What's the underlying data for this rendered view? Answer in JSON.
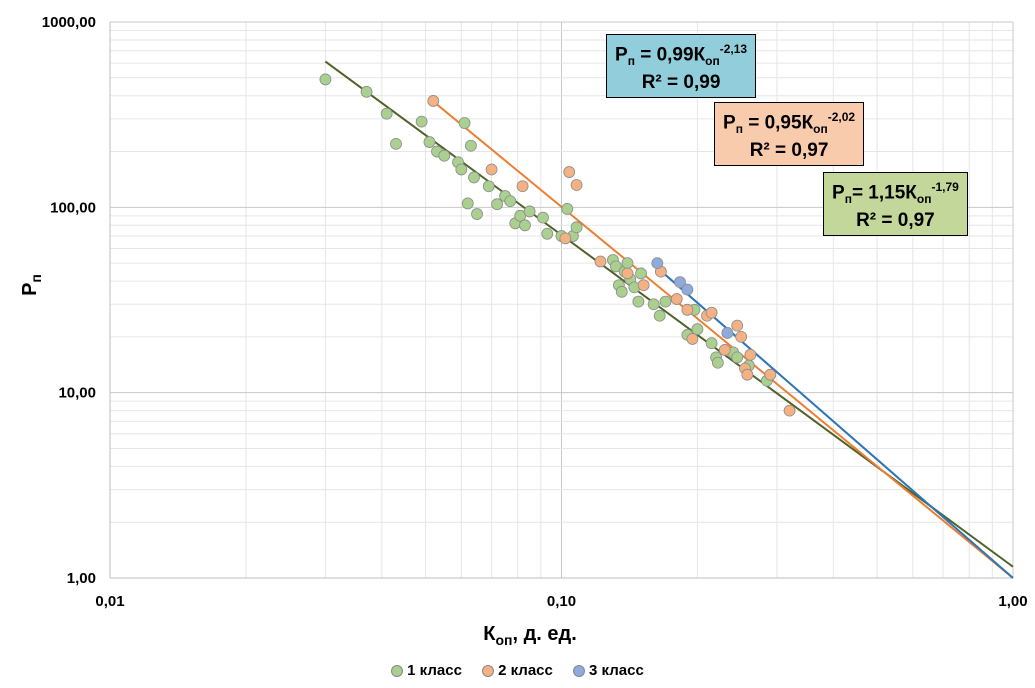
{
  "chart_data": {
    "type": "scatter",
    "x_scale": "log",
    "y_scale": "log",
    "xlim": [
      0.01,
      1.0
    ],
    "ylim": [
      1.0,
      1000.0
    ],
    "grid": true,
    "legend_placement": "bottom",
    "xlabel": {
      "main": "К",
      "sub": "оп",
      "rest": ", д. ед."
    },
    "ylabel": {
      "main": "Р",
      "sub": "п"
    },
    "x_ticks": [
      0.01,
      0.1,
      1.0
    ],
    "x_tick_labels": [
      "0,01",
      "0,10",
      "1,00"
    ],
    "y_ticks": [
      1,
      10,
      100,
      1000
    ],
    "y_tick_labels": [
      "1,00",
      "10,00",
      "100,00",
      "1000,00"
    ],
    "series": [
      {
        "name": "1 класс",
        "color": "#a9d08e",
        "trend_color": "#4f6228",
        "trend": {
          "a": 1.15,
          "b": -1.79,
          "x_from": 0.03,
          "x_to": 1.0
        },
        "points": [
          [
            0.03,
            490
          ],
          [
            0.037,
            420
          ],
          [
            0.041,
            320
          ],
          [
            0.043,
            220
          ],
          [
            0.049,
            290
          ],
          [
            0.051,
            225
          ],
          [
            0.053,
            200
          ],
          [
            0.055,
            190
          ],
          [
            0.059,
            175
          ],
          [
            0.06,
            160
          ],
          [
            0.061,
            285
          ],
          [
            0.063,
            215
          ],
          [
            0.064,
            145
          ],
          [
            0.062,
            105
          ],
          [
            0.065,
            92
          ],
          [
            0.069,
            130
          ],
          [
            0.072,
            104
          ],
          [
            0.075,
            115
          ],
          [
            0.077,
            108
          ],
          [
            0.079,
            82
          ],
          [
            0.081,
            90
          ],
          [
            0.083,
            80
          ],
          [
            0.085,
            95
          ],
          [
            0.091,
            88
          ],
          [
            0.093,
            72
          ],
          [
            0.1,
            70
          ],
          [
            0.103,
            98
          ],
          [
            0.106,
            70
          ],
          [
            0.108,
            78
          ],
          [
            0.13,
            52
          ],
          [
            0.132,
            48
          ],
          [
            0.134,
            38
          ],
          [
            0.136,
            35
          ],
          [
            0.138,
            45
          ],
          [
            0.14,
            50
          ],
          [
            0.142,
            41
          ],
          [
            0.145,
            37
          ],
          [
            0.15,
            44
          ],
          [
            0.148,
            31
          ],
          [
            0.16,
            30
          ],
          [
            0.165,
            26
          ],
          [
            0.17,
            31
          ],
          [
            0.19,
            20.5
          ],
          [
            0.197,
            28
          ],
          [
            0.2,
            22
          ],
          [
            0.215,
            18.5
          ],
          [
            0.22,
            15.5
          ],
          [
            0.222,
            14.5
          ],
          [
            0.24,
            16.5
          ],
          [
            0.245,
            15.5
          ],
          [
            0.26,
            14
          ],
          [
            0.285,
            11.6
          ]
        ]
      },
      {
        "name": "2 класс",
        "color": "#f4b183",
        "trend_color": "#ed7d31",
        "trend": {
          "a": 0.95,
          "b": -2.02,
          "x_from": 0.052,
          "x_to": 1.0
        },
        "points": [
          [
            0.052,
            375
          ],
          [
            0.07,
            160
          ],
          [
            0.082,
            130
          ],
          [
            0.102,
            68
          ],
          [
            0.104,
            155
          ],
          [
            0.108,
            132
          ],
          [
            0.122,
            51
          ],
          [
            0.14,
            44
          ],
          [
            0.152,
            38
          ],
          [
            0.166,
            45
          ],
          [
            0.18,
            32
          ],
          [
            0.19,
            28
          ],
          [
            0.195,
            19.5
          ],
          [
            0.21,
            26
          ],
          [
            0.215,
            27
          ],
          [
            0.23,
            17
          ],
          [
            0.245,
            23
          ],
          [
            0.25,
            20
          ],
          [
            0.255,
            13.5
          ],
          [
            0.258,
            12.5
          ],
          [
            0.262,
            16
          ],
          [
            0.29,
            12.5
          ],
          [
            0.32,
            8
          ]
        ]
      },
      {
        "name": "3 класс",
        "color": "#8faadc",
        "trend_color": "#2e75b6",
        "trend": {
          "a": 0.99,
          "b": -2.13,
          "x_from": 0.163,
          "x_to": 1.0
        },
        "points": [
          [
            0.163,
            50
          ],
          [
            0.183,
            39.5
          ],
          [
            0.19,
            36
          ],
          [
            0.233,
            21
          ]
        ]
      }
    ],
    "annotations": [
      {
        "series": "3 класс",
        "color": "#92cddc",
        "lhs": "Р",
        "lhs_sub": "п",
        "eq": " = 0,99К",
        "sub": "оп",
        "exp": "-2,13",
        "r2": "R² = 0,99"
      },
      {
        "series": "2 класс",
        "color": "#f8cbad",
        "lhs": "Р",
        "lhs_sub": "п",
        "eq": " = 0,95К",
        "sub": "оп",
        "exp": "-2,02",
        "r2": "R² = 0,97"
      },
      {
        "series": "1 класс",
        "color": "#c4d79b",
        "lhs": "Р",
        "lhs_sub": "п",
        "eq": "= 1,15К",
        "sub": "оп",
        "exp": "-1,79",
        "r2": "R² = 0,97"
      }
    ]
  }
}
